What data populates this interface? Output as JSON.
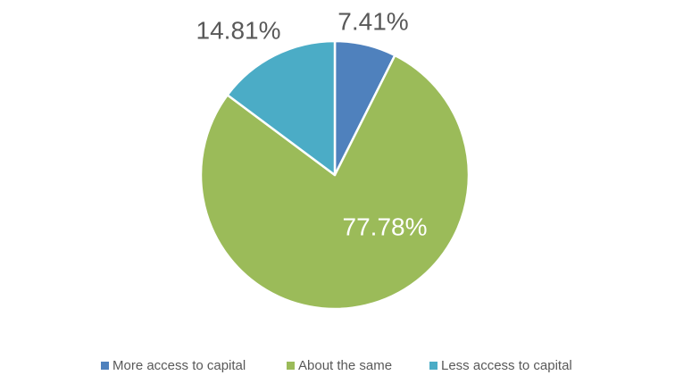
{
  "chart_data": {
    "type": "pie",
    "title": "",
    "slices": [
      {
        "label": "More access to capital",
        "value": 7.41,
        "display": "7.41%",
        "color": "#4F81BD"
      },
      {
        "label": "About the same",
        "value": 77.78,
        "display": "77.78%",
        "color": "#9BBB59"
      },
      {
        "label": "Less access to capital",
        "value": 14.81,
        "display": "14.81%",
        "color": "#4BACC6"
      }
    ],
    "start_angle_deg": 0,
    "direction": "clockwise",
    "legend_position": "bottom",
    "label_colors": {
      "outside": "#595959",
      "inside": "#ffffff"
    }
  }
}
